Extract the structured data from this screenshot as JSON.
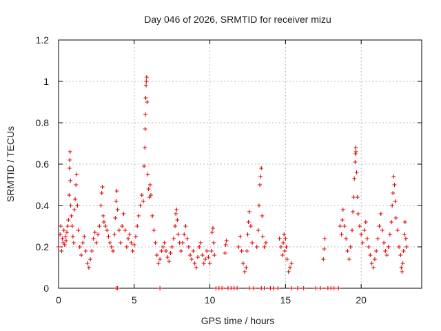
{
  "chart_data": {
    "type": "scatter",
    "title": "Day 046 of 2026, SRMTID for receiver mizu",
    "xlabel": "GPS time / hours",
    "ylabel": "SRMTID / TECUs",
    "xlim": [
      0,
      24
    ],
    "ylim": [
      0,
      1.2
    ],
    "x_ticks": [
      0,
      5,
      10,
      15,
      20
    ],
    "y_ticks": [
      0,
      0.2,
      0.4,
      0.6,
      0.8,
      1,
      1.2
    ],
    "x_tick_labels": [
      "0",
      "5",
      "10",
      "15",
      "20"
    ],
    "y_tick_labels": [
      "0",
      "0.2",
      "0.4",
      "0.6",
      "0.8",
      "1",
      "1.2"
    ],
    "grid": true,
    "marker": "+",
    "color": "#e00000",
    "series": [
      {
        "name": "SRMTID",
        "points": [
          [
            0.0,
            0.2
          ],
          [
            0.1,
            0.26
          ],
          [
            0.15,
            0.3
          ],
          [
            0.2,
            0.18
          ],
          [
            0.25,
            0.24
          ],
          [
            0.3,
            0.22
          ],
          [
            0.35,
            0.28
          ],
          [
            0.4,
            0.21
          ],
          [
            0.45,
            0.25
          ],
          [
            0.5,
            0.23
          ],
          [
            0.55,
            0.27
          ],
          [
            0.6,
            0.3
          ],
          [
            0.65,
            0.33
          ],
          [
            0.7,
            0.45
          ],
          [
            0.72,
            0.58
          ],
          [
            0.74,
            0.62
          ],
          [
            0.76,
            0.66
          ],
          [
            0.78,
            0.52
          ],
          [
            0.8,
            0.4
          ],
          [
            0.85,
            0.35
          ],
          [
            0.9,
            0.3
          ],
          [
            0.95,
            0.25
          ],
          [
            1.0,
            0.22
          ],
          [
            1.05,
            0.38
          ],
          [
            1.1,
            0.43
          ],
          [
            1.15,
            0.5
          ],
          [
            1.2,
            0.55
          ],
          [
            1.25,
            0.4
          ],
          [
            1.3,
            0.28
          ],
          [
            1.4,
            0.2
          ],
          [
            1.5,
            0.16
          ],
          [
            1.6,
            0.22
          ],
          [
            1.7,
            0.25
          ],
          [
            1.8,
            0.18
          ],
          [
            1.9,
            0.12
          ],
          [
            2.0,
            0.1
          ],
          [
            2.1,
            0.14
          ],
          [
            2.2,
            0.18
          ],
          [
            2.3,
            0.24
          ],
          [
            2.4,
            0.27
          ],
          [
            2.5,
            0.22
          ],
          [
            2.6,
            0.26
          ],
          [
            2.7,
            0.3
          ],
          [
            2.8,
            0.4
          ],
          [
            2.85,
            0.46
          ],
          [
            2.9,
            0.49
          ],
          [
            2.95,
            0.35
          ],
          [
            3.0,
            0.32
          ],
          [
            3.1,
            0.3
          ],
          [
            3.2,
            0.28
          ],
          [
            3.3,
            0.25
          ],
          [
            3.4,
            0.22
          ],
          [
            3.5,
            0.2
          ],
          [
            3.6,
            0.18
          ],
          [
            3.7,
            0.26
          ],
          [
            3.75,
            0.34
          ],
          [
            3.8,
            0.42
          ],
          [
            3.85,
            0.47
          ],
          [
            3.9,
            0.38
          ],
          [
            4.0,
            0.28
          ],
          [
            4.1,
            0.22
          ],
          [
            4.2,
            0.3
          ],
          [
            4.3,
            0.36
          ],
          [
            4.4,
            0.28
          ],
          [
            4.5,
            0.2
          ],
          [
            4.6,
            0.24
          ],
          [
            4.7,
            0.26
          ],
          [
            4.8,
            0.22
          ],
          [
            4.9,
            0.18
          ],
          [
            5.0,
            0.21
          ],
          [
            5.1,
            0.25
          ],
          [
            5.2,
            0.3
          ],
          [
            5.3,
            0.35
          ],
          [
            5.4,
            0.4
          ],
          [
            5.5,
            0.45
          ],
          [
            5.6,
            0.42
          ],
          [
            5.65,
            0.59
          ],
          [
            5.7,
            0.68
          ],
          [
            5.72,
            0.77
          ],
          [
            5.74,
            0.84
          ],
          [
            5.76,
            0.92
          ],
          [
            5.78,
            0.98
          ],
          [
            5.8,
            1.0
          ],
          [
            5.82,
            1.02
          ],
          [
            5.85,
            0.9
          ],
          [
            5.9,
            0.55
          ],
          [
            5.95,
            0.48
          ],
          [
            6.0,
            0.44
          ],
          [
            6.05,
            0.5
          ],
          [
            6.1,
            0.45
          ],
          [
            6.2,
            0.35
          ],
          [
            6.3,
            0.28
          ],
          [
            6.4,
            0.22
          ],
          [
            6.5,
            0.16
          ],
          [
            6.6,
            0.12
          ],
          [
            6.7,
            0.14
          ],
          [
            6.8,
            0.18
          ],
          [
            6.9,
            0.2
          ],
          [
            7.0,
            0.22
          ],
          [
            7.1,
            0.18
          ],
          [
            7.2,
            0.15
          ],
          [
            7.3,
            0.13
          ],
          [
            7.4,
            0.17
          ],
          [
            7.5,
            0.2
          ],
          [
            7.6,
            0.24
          ],
          [
            7.7,
            0.3
          ],
          [
            7.75,
            0.36
          ],
          [
            7.8,
            0.38
          ],
          [
            7.85,
            0.33
          ],
          [
            7.9,
            0.26
          ],
          [
            8.0,
            0.22
          ],
          [
            8.1,
            0.18
          ],
          [
            8.2,
            0.22
          ],
          [
            8.3,
            0.26
          ],
          [
            8.4,
            0.3
          ],
          [
            8.5,
            0.24
          ],
          [
            8.6,
            0.2
          ],
          [
            8.7,
            0.16
          ],
          [
            8.8,
            0.14
          ],
          [
            8.9,
            0.18
          ],
          [
            9.0,
            0.12
          ],
          [
            9.1,
            0.1
          ],
          [
            9.2,
            0.15
          ],
          [
            9.3,
            0.2
          ],
          [
            9.4,
            0.22
          ],
          [
            9.5,
            0.16
          ],
          [
            9.6,
            0.12
          ],
          [
            9.7,
            0.14
          ],
          [
            9.8,
            0.18
          ],
          [
            9.9,
            0.15
          ],
          [
            10.0,
            0.12
          ],
          [
            10.1,
            0.18
          ],
          [
            10.15,
            0.27
          ],
          [
            10.2,
            0.29
          ],
          [
            10.25,
            0.22
          ],
          [
            10.3,
            0.16
          ],
          [
            10.4,
            0.0
          ],
          [
            10.6,
            0.0
          ],
          [
            10.8,
            0.0
          ],
          [
            11.0,
            0.17
          ],
          [
            11.05,
            0.21
          ],
          [
            11.1,
            0.23
          ],
          [
            11.2,
            0.0
          ],
          [
            11.4,
            0.0
          ],
          [
            11.6,
            0.0
          ],
          [
            11.8,
            0.0
          ],
          [
            11.9,
            0.2
          ],
          [
            12.0,
            0.25
          ],
          [
            12.1,
            0.18
          ],
          [
            12.2,
            0.12
          ],
          [
            12.3,
            0.08
          ],
          [
            12.4,
            0.1
          ],
          [
            12.45,
            0.18
          ],
          [
            12.5,
            0.26
          ],
          [
            12.55,
            0.32
          ],
          [
            12.6,
            0.37
          ],
          [
            12.7,
            0.3
          ],
          [
            12.8,
            0.22
          ],
          [
            12.6,
            0.0
          ],
          [
            12.9,
            0.0
          ],
          [
            13.1,
            0.2
          ],
          [
            13.2,
            0.28
          ],
          [
            13.25,
            0.4
          ],
          [
            13.3,
            0.5
          ],
          [
            13.35,
            0.54
          ],
          [
            13.4,
            0.58
          ],
          [
            13.45,
            0.35
          ],
          [
            13.5,
            0.25
          ],
          [
            13.6,
            0.2
          ],
          [
            13.7,
            0.22
          ],
          [
            13.4,
            0.0
          ],
          [
            13.6,
            0.0
          ],
          [
            14.0,
            0.0
          ],
          [
            14.2,
            0.0
          ],
          [
            14.5,
            0.0
          ],
          [
            14.6,
            0.24
          ],
          [
            14.7,
            0.2
          ],
          [
            14.8,
            0.16
          ],
          [
            14.85,
            0.22
          ],
          [
            14.9,
            0.26
          ],
          [
            14.95,
            0.18
          ],
          [
            15.0,
            0.24
          ],
          [
            15.05,
            0.2
          ],
          [
            15.1,
            0.14
          ],
          [
            15.2,
            0.08
          ],
          [
            15.3,
            0.1
          ],
          [
            15.4,
            0.12
          ],
          [
            15.4,
            0.0
          ],
          [
            15.8,
            0.0
          ],
          [
            16.2,
            0.0
          ],
          [
            17.0,
            0.0
          ],
          [
            17.3,
            0.0
          ],
          [
            17.5,
            0.14
          ],
          [
            17.55,
            0.19
          ],
          [
            17.6,
            0.24
          ],
          [
            17.8,
            0.0
          ],
          [
            18.0,
            0.0
          ],
          [
            18.2,
            0.0
          ],
          [
            18.5,
            0.0
          ],
          [
            18.6,
            0.3
          ],
          [
            18.7,
            0.26
          ],
          [
            18.75,
            0.33
          ],
          [
            18.8,
            0.38
          ],
          [
            18.9,
            0.3
          ],
          [
            19.0,
            0.24
          ],
          [
            19.1,
            0.18
          ],
          [
            19.2,
            0.14
          ],
          [
            19.3,
            0.2
          ],
          [
            19.4,
            0.28
          ],
          [
            19.45,
            0.37
          ],
          [
            19.5,
            0.44
          ],
          [
            19.55,
            0.53
          ],
          [
            19.6,
            0.61
          ],
          [
            19.62,
            0.65
          ],
          [
            19.64,
            0.68
          ],
          [
            19.66,
            0.66
          ],
          [
            19.7,
            0.56
          ],
          [
            19.75,
            0.44
          ],
          [
            19.8,
            0.36
          ],
          [
            19.9,
            0.3
          ],
          [
            20.0,
            0.26
          ],
          [
            20.1,
            0.22
          ],
          [
            20.2,
            0.28
          ],
          [
            20.3,
            0.32
          ],
          [
            20.4,
            0.24
          ],
          [
            20.5,
            0.2
          ],
          [
            20.6,
            0.16
          ],
          [
            20.7,
            0.12
          ],
          [
            20.8,
            0.1
          ],
          [
            20.9,
            0.14
          ],
          [
            21.0,
            0.18
          ],
          [
            21.1,
            0.24
          ],
          [
            21.2,
            0.3
          ],
          [
            21.3,
            0.36
          ],
          [
            21.4,
            0.28
          ],
          [
            21.5,
            0.22
          ],
          [
            21.6,
            0.18
          ],
          [
            21.7,
            0.16
          ],
          [
            21.8,
            0.2
          ],
          [
            21.9,
            0.26
          ],
          [
            22.0,
            0.32
          ],
          [
            22.05,
            0.4
          ],
          [
            22.1,
            0.46
          ],
          [
            22.15,
            0.54
          ],
          [
            22.2,
            0.5
          ],
          [
            22.25,
            0.42
          ],
          [
            22.3,
            0.34
          ],
          [
            22.4,
            0.28
          ],
          [
            22.5,
            0.2
          ],
          [
            22.6,
            0.16
          ],
          [
            22.65,
            0.1
          ],
          [
            22.7,
            0.08
          ],
          [
            22.75,
            0.12
          ],
          [
            22.8,
            0.18
          ],
          [
            22.85,
            0.26
          ],
          [
            22.9,
            0.32
          ],
          [
            22.95,
            0.24
          ],
          [
            23.0,
            0.2
          ],
          [
            3.8,
            0.0
          ],
          [
            3.9,
            0.0
          ],
          [
            6.7,
            0.0
          ]
        ]
      }
    ]
  }
}
